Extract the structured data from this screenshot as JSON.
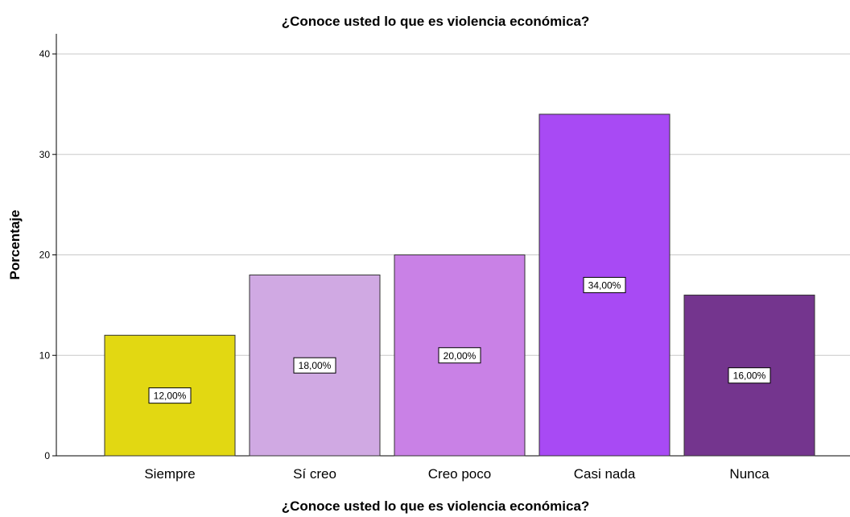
{
  "chart_data": {
    "type": "bar",
    "title": "¿Conoce usted lo que es violencia económica?",
    "xlabel": "¿Conoce usted lo que es violencia económica?",
    "ylabel": "Porcentaje",
    "categories": [
      "Siempre",
      "Sí creo",
      "Creo poco",
      "Casi nada",
      "Nunca"
    ],
    "values": [
      12,
      18,
      20,
      34,
      16
    ],
    "data_labels": [
      "12,00%",
      "18,00%",
      "20,00%",
      "34,00%",
      "16,00%"
    ],
    "colors": [
      "#e2d812",
      "#d0a9e3",
      "#c981e6",
      "#a84af4",
      "#74358e"
    ],
    "ylim": [
      0,
      42
    ],
    "yticks": [
      0,
      10,
      20,
      30,
      40
    ],
    "grid": true,
    "legend": "none"
  }
}
